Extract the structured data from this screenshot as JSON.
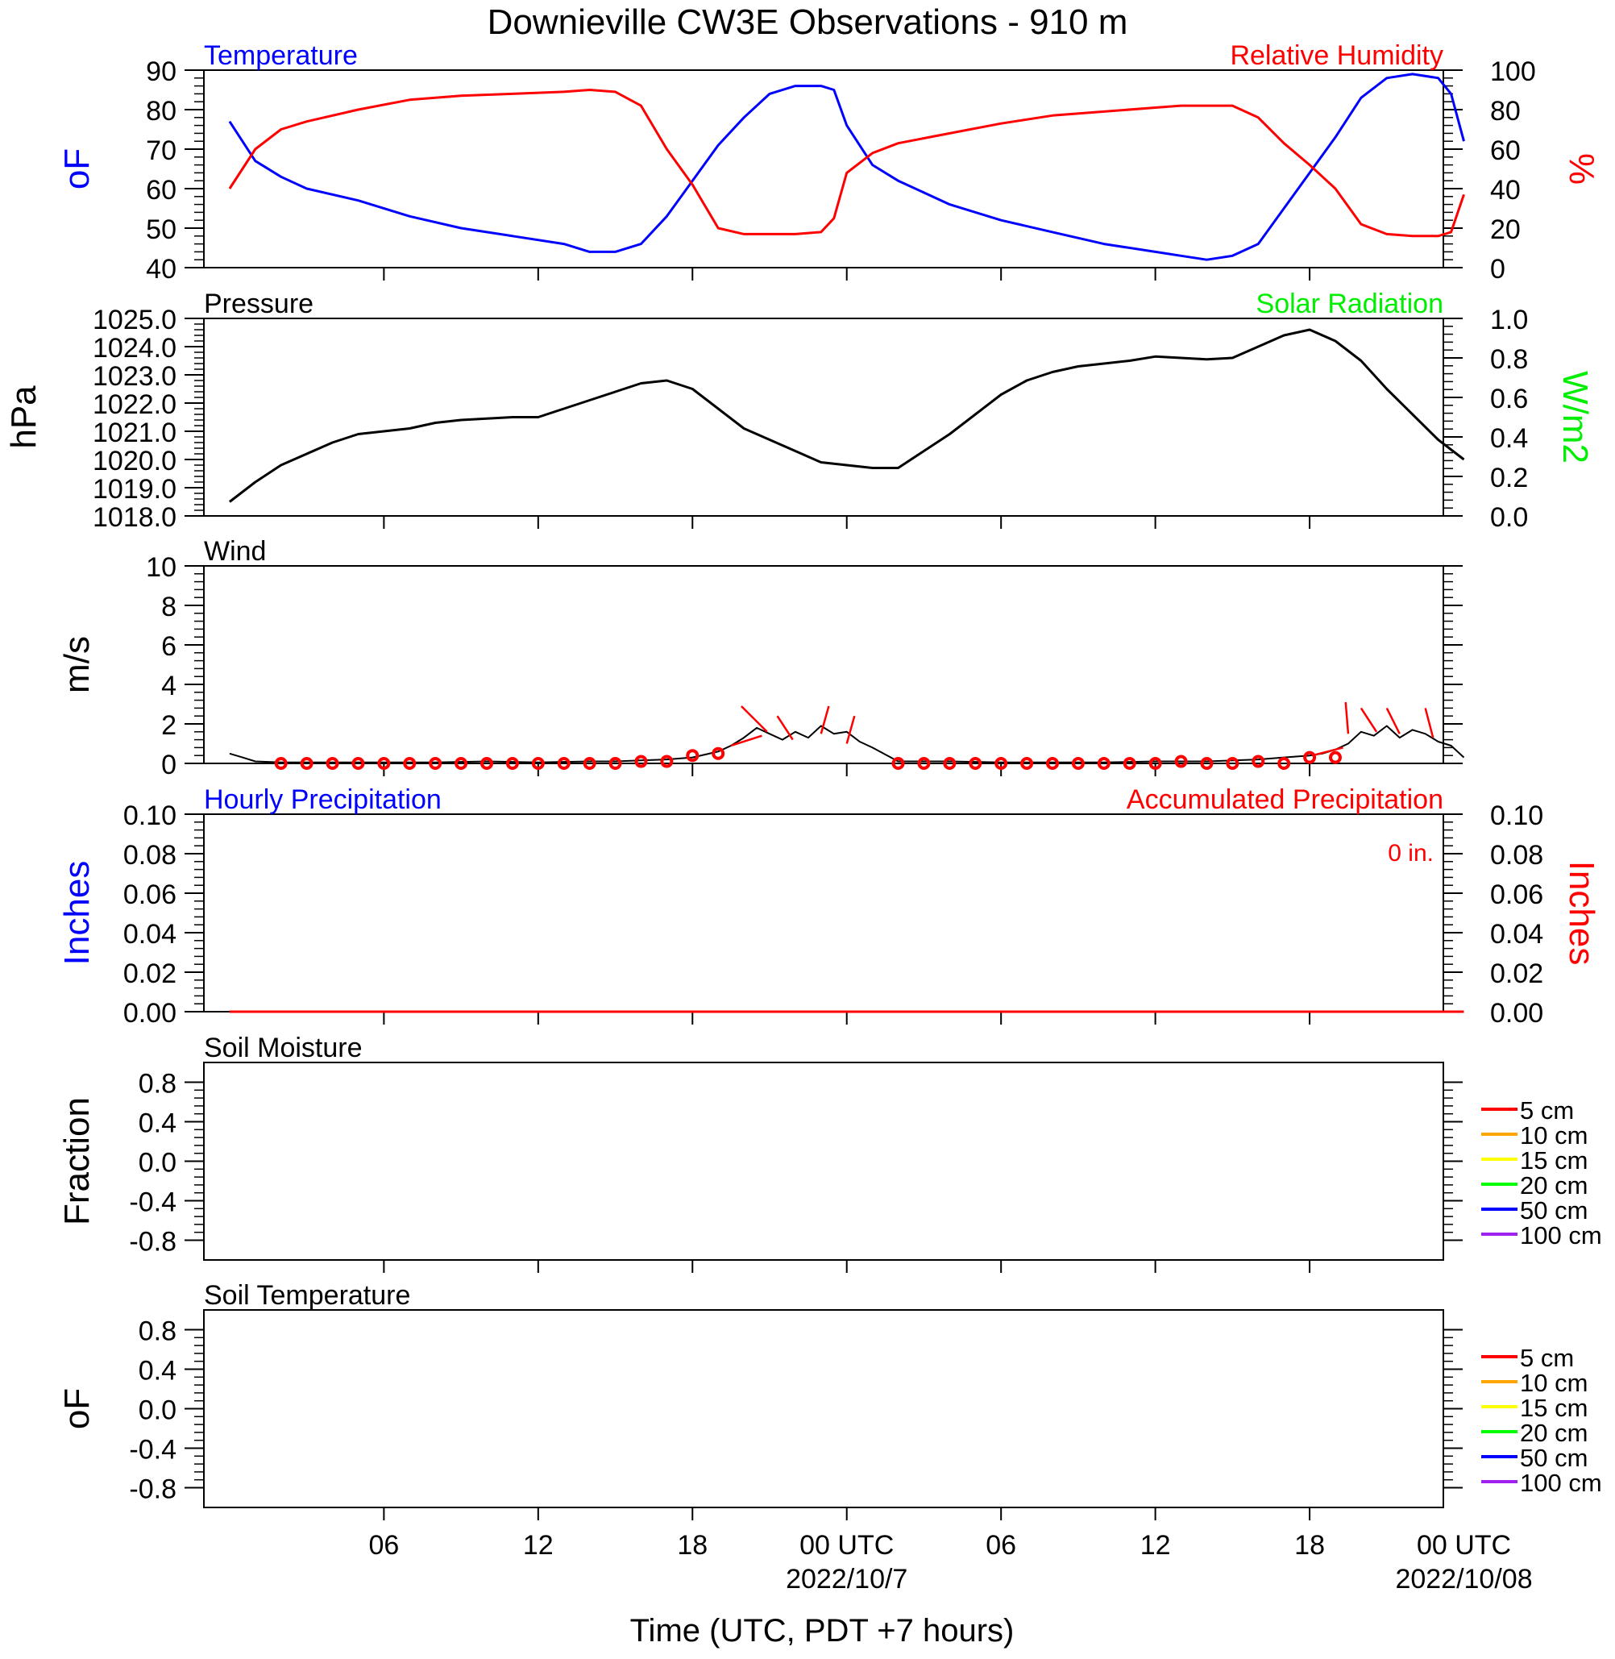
{
  "title": "Downieville CW3E Observations - 910 m",
  "x_axis": {
    "label": "Time (UTC, PDT +7 hours)",
    "tick_labels": [
      "06",
      "12",
      "18",
      "00 UTC",
      "06",
      "12",
      "18",
      "00 UTC"
    ],
    "date_labels": [
      "2022/10/7",
      "2022/10/08"
    ]
  },
  "colors": {
    "temperature": "#0000ff",
    "humidity": "#ff0000",
    "solar": "#00ee00",
    "pressure": "#000000",
    "wind": "#000000",
    "wind_barb": "#ff0000",
    "hourly_precip": "#0000ff",
    "accum_precip": "#ff0000",
    "depth_colors": [
      "#ff0000",
      "#ffa500",
      "#ffff00",
      "#00ff00",
      "#0000ff",
      "#a020f0"
    ]
  },
  "chart_data": [
    {
      "type": "line",
      "panel": "temperature-humidity",
      "title_left": "Temperature",
      "title_right": "Relative Humidity",
      "ylabel_left": "oF",
      "ylabel_right": "%",
      "ylim_left": [
        40,
        90
      ],
      "yticks_left": [
        "40",
        "50",
        "60",
        "70",
        "80",
        "90"
      ],
      "ylim_right": [
        0,
        100
      ],
      "yticks_right": [
        "0",
        "20",
        "40",
        "60",
        "80",
        "100"
      ],
      "x_hours": [
        0,
        1,
        2,
        3,
        5,
        7,
        9,
        11,
        13,
        14,
        15,
        16,
        17,
        18,
        19,
        20,
        21,
        22,
        23,
        23.5,
        24,
        25,
        26,
        28,
        30,
        32,
        34,
        36,
        37,
        38,
        39,
        40,
        41,
        42,
        43,
        44,
        45,
        46,
        47,
        47.5,
        48
      ],
      "series": [
        {
          "name": "Temperature",
          "axis": "left",
          "values": [
            77,
            67,
            63,
            60,
            57,
            53,
            50,
            48,
            46,
            44,
            44,
            46,
            53,
            62,
            71,
            78,
            84,
            86,
            86,
            85,
            76,
            66,
            62,
            56,
            52,
            49,
            46,
            44,
            43,
            42,
            43,
            46,
            55,
            64,
            73,
            83,
            88,
            89,
            88,
            84,
            72
          ]
        },
        {
          "name": "Relative Humidity",
          "axis": "right",
          "values": [
            40,
            60,
            70,
            74,
            80,
            85,
            87,
            88,
            89,
            90,
            89,
            82,
            60,
            42,
            20,
            17,
            17,
            17,
            18,
            25,
            48,
            58,
            63,
            68,
            73,
            77,
            79,
            81,
            82,
            82,
            82,
            76,
            63,
            52,
            40,
            22,
            17,
            16,
            16,
            18,
            37
          ]
        }
      ]
    },
    {
      "type": "line",
      "panel": "pressure-solar",
      "title_left": "Pressure",
      "title_right": "Solar Radiation",
      "ylabel_left": "hPa",
      "ylabel_right": "W/m2",
      "ylim_left": [
        1018,
        1025
      ],
      "yticks_left": [
        "1018.0",
        "1019.0",
        "1020.0",
        "1021.0",
        "1022.0",
        "1023.0",
        "1024.0",
        "1025.0"
      ],
      "ylim_right": [
        0,
        1
      ],
      "yticks_right": [
        "0.0",
        "0.2",
        "0.4",
        "0.6",
        "0.8",
        "1.0"
      ],
      "x_hours": [
        0,
        1,
        2,
        3,
        4,
        5,
        6,
        7,
        8,
        9,
        10,
        11,
        12,
        13,
        14,
        15,
        16,
        17,
        18,
        19,
        20,
        21,
        22,
        23,
        24,
        25,
        26,
        27,
        28,
        29,
        30,
        31,
        32,
        33,
        34,
        35,
        36,
        37,
        38,
        39,
        40,
        41,
        42,
        43,
        44,
        45,
        46,
        47,
        48
      ],
      "series": [
        {
          "name": "Pressure",
          "axis": "left",
          "values": [
            1018.5,
            1019.2,
            1019.8,
            1020.2,
            1020.6,
            1020.9,
            1021.0,
            1021.1,
            1021.3,
            1021.4,
            1021.45,
            1021.5,
            1021.5,
            1021.8,
            1022.1,
            1022.4,
            1022.7,
            1022.8,
            1022.5,
            1021.8,
            1021.1,
            1020.7,
            1020.3,
            1019.9,
            1019.8,
            1019.7,
            1019.7,
            1020.3,
            1020.9,
            1021.6,
            1022.3,
            1022.8,
            1023.1,
            1023.3,
            1023.4,
            1023.5,
            1023.65,
            1023.6,
            1023.55,
            1023.6,
            1024.0,
            1024.4,
            1024.6,
            1024.2,
            1023.5,
            1022.5,
            1021.6,
            1020.7,
            1020.0
          ]
        }
      ]
    },
    {
      "type": "line",
      "panel": "wind",
      "title_left": "Wind",
      "ylabel_left": "m/s",
      "ylim_left": [
        0,
        10
      ],
      "yticks_left": [
        "0",
        "2",
        "4",
        "6",
        "8",
        "10"
      ],
      "x_hours": [
        0,
        0.5,
        1,
        2,
        4,
        6,
        8,
        10,
        12,
        14,
        15,
        16,
        17,
        18,
        19,
        19.5,
        20,
        20.5,
        21,
        21.5,
        22,
        22.5,
        23,
        23.5,
        24,
        24.5,
        25,
        26,
        28,
        30,
        32,
        34,
        36,
        38,
        40,
        41,
        42,
        42.5,
        43,
        43.5,
        44,
        44.5,
        45,
        45.5,
        46,
        46.5,
        47,
        47.5,
        48
      ],
      "series": [
        {
          "name": "Wind speed",
          "axis": "left",
          "values": [
            0.5,
            0.3,
            0.1,
            0.05,
            0.05,
            0.05,
            0.05,
            0.1,
            0.05,
            0.1,
            0.1,
            0.15,
            0.2,
            0.3,
            0.6,
            0.9,
            1.3,
            1.8,
            1.5,
            1.2,
            1.6,
            1.3,
            1.9,
            1.5,
            1.6,
            1.1,
            0.8,
            0.1,
            0.1,
            0.05,
            0.05,
            0.05,
            0.1,
            0.1,
            0.2,
            0.3,
            0.4,
            0.5,
            0.7,
            1.0,
            1.6,
            1.4,
            1.9,
            1.3,
            1.7,
            1.5,
            1.1,
            0.9,
            0.3
          ]
        }
      ],
      "barbs_x_hours": [
        2,
        3,
        4,
        5,
        6,
        7,
        8,
        9,
        10,
        11,
        12,
        13,
        14,
        15,
        16,
        17,
        18,
        19,
        26,
        27,
        28,
        29,
        30,
        31,
        32,
        33,
        34,
        35,
        36,
        37,
        38,
        39,
        40,
        41,
        42,
        43
      ],
      "barbs_speed": [
        0,
        0,
        0,
        0,
        0,
        0,
        0,
        0,
        0,
        0,
        0,
        0,
        0,
        0,
        0.1,
        0.1,
        0.4,
        0.5,
        0,
        0,
        0,
        0,
        0,
        0,
        0,
        0,
        0,
        0,
        0,
        0.1,
        0,
        0,
        0.1,
        0,
        0.3,
        0.3
      ],
      "barb_lines": [
        {
          "x": 19.5,
          "y": 0.9,
          "dx": 1.2,
          "dy": 0.5
        },
        {
          "x": 20.9,
          "y": 1.6,
          "dx": -1.0,
          "dy": 1.3
        },
        {
          "x": 21.9,
          "y": 1.2,
          "dx": -0.6,
          "dy": 1.2
        },
        {
          "x": 23.0,
          "y": 1.5,
          "dx": 0.3,
          "dy": 1.4
        },
        {
          "x": 24.0,
          "y": 1.0,
          "dx": 0.3,
          "dy": 1.4
        },
        {
          "x": 42.1,
          "y": 0.4,
          "dx": 1.2,
          "dy": 0.4
        },
        {
          "x": 43.5,
          "y": 1.5,
          "dx": -0.1,
          "dy": 1.6
        },
        {
          "x": 44.6,
          "y": 1.6,
          "dx": -0.6,
          "dy": 1.2
        },
        {
          "x": 45.5,
          "y": 1.5,
          "dx": -0.5,
          "dy": 1.3
        },
        {
          "x": 46.8,
          "y": 1.3,
          "dx": -0.3,
          "dy": 1.5
        }
      ]
    },
    {
      "type": "line",
      "panel": "precipitation",
      "title_left": "Hourly Precipitation",
      "title_right": "Accumulated Precipitation",
      "annotation": "0 in.",
      "ylabel_left": "Inches",
      "ylabel_right": "Inches",
      "ylim_left": [
        0,
        0.1
      ],
      "yticks_left": [
        "0.00",
        "0.02",
        "0.04",
        "0.06",
        "0.08",
        "0.10"
      ],
      "ylim_right": [
        0,
        0.1
      ],
      "yticks_right": [
        "0.00",
        "0.02",
        "0.04",
        "0.06",
        "0.08",
        "0.10"
      ],
      "x_hours": [
        0,
        48
      ],
      "series": [
        {
          "name": "Hourly Precipitation",
          "axis": "left",
          "values": [
            0,
            0
          ]
        },
        {
          "name": "Accumulated Precipitation",
          "axis": "right",
          "values": [
            0,
            0
          ]
        }
      ]
    },
    {
      "type": "line",
      "panel": "soil-moisture",
      "title_left": "Soil Moisture",
      "ylabel_left": "Fraction",
      "ylim_left": [
        -1,
        1
      ],
      "yticks_left": [
        "-0.8",
        "-0.4",
        "0.0",
        "0.4",
        "0.8"
      ],
      "legend": [
        "5 cm",
        "10 cm",
        "15 cm",
        "20 cm",
        "50 cm",
        "100 cm"
      ],
      "series": []
    },
    {
      "type": "line",
      "panel": "soil-temperature",
      "title_left": "Soil Temperature",
      "ylabel_left": "oF",
      "ylim_left": [
        -1,
        1
      ],
      "yticks_left": [
        "-0.8",
        "-0.4",
        "0.0",
        "0.4",
        "0.8"
      ],
      "legend": [
        "5 cm",
        "10 cm",
        "15 cm",
        "20 cm",
        "50 cm",
        "100 cm"
      ],
      "series": []
    }
  ]
}
